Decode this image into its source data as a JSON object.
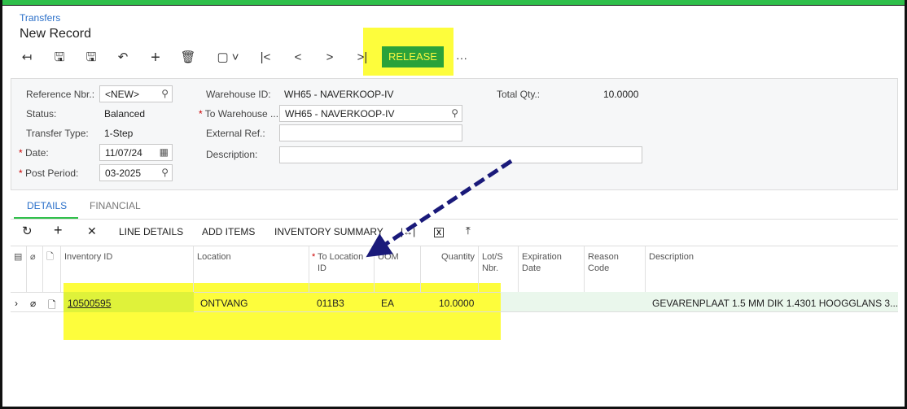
{
  "breadcrumb": "Transfers",
  "title": "New Record",
  "toolbar": {
    "release": "RELEASE",
    "more": "···"
  },
  "form": {
    "reference_nbr": {
      "label": "Reference Nbr.:",
      "value": "<NEW>"
    },
    "status": {
      "label": "Status:",
      "value": "Balanced"
    },
    "transfer_type": {
      "label": "Transfer Type:",
      "value": "1-Step"
    },
    "date": {
      "label": "Date:",
      "value": "11/07/24"
    },
    "post_period": {
      "label": "Post Period:",
      "value": "03-2025"
    },
    "warehouse_id": {
      "label": "Warehouse ID:",
      "value": "WH65 - NAVERKOOP-IV"
    },
    "to_warehouse": {
      "label": "To Warehouse ...",
      "value": "WH65 - NAVERKOOP-IV"
    },
    "external_ref": {
      "label": "External Ref.:",
      "value": ""
    },
    "description": {
      "label": "Description:",
      "value": ""
    },
    "total_qty": {
      "label": "Total Qty.:",
      "value": "10.0000"
    }
  },
  "tabs": [
    "DETAILS",
    "FINANCIAL"
  ],
  "grid_toolbar": {
    "line_details": "LINE DETAILS",
    "add_items": "ADD ITEMS",
    "inventory_summary": "INVENTORY SUMMARY"
  },
  "columns": [
    "Inventory ID",
    "Location",
    "To Location ID",
    "UOM",
    "Quantity",
    "Lot/S Nbr.",
    "Expiration Date",
    "Reason Code",
    "Description"
  ],
  "rows": [
    {
      "inventory_id": "10500595",
      "location": "ONTVANG",
      "to_location": "011B3",
      "uom": "EA",
      "quantity": "10.0000",
      "description": "GEVARENPLAAT 1.5 MM DIK 1.4301 HOOGGLANS 3..."
    }
  ],
  "colors": {
    "accent": "#2aa23a",
    "highlight": "#fdfd3c",
    "link": "#2a6fc9",
    "arrow": "#1a1a7a"
  }
}
